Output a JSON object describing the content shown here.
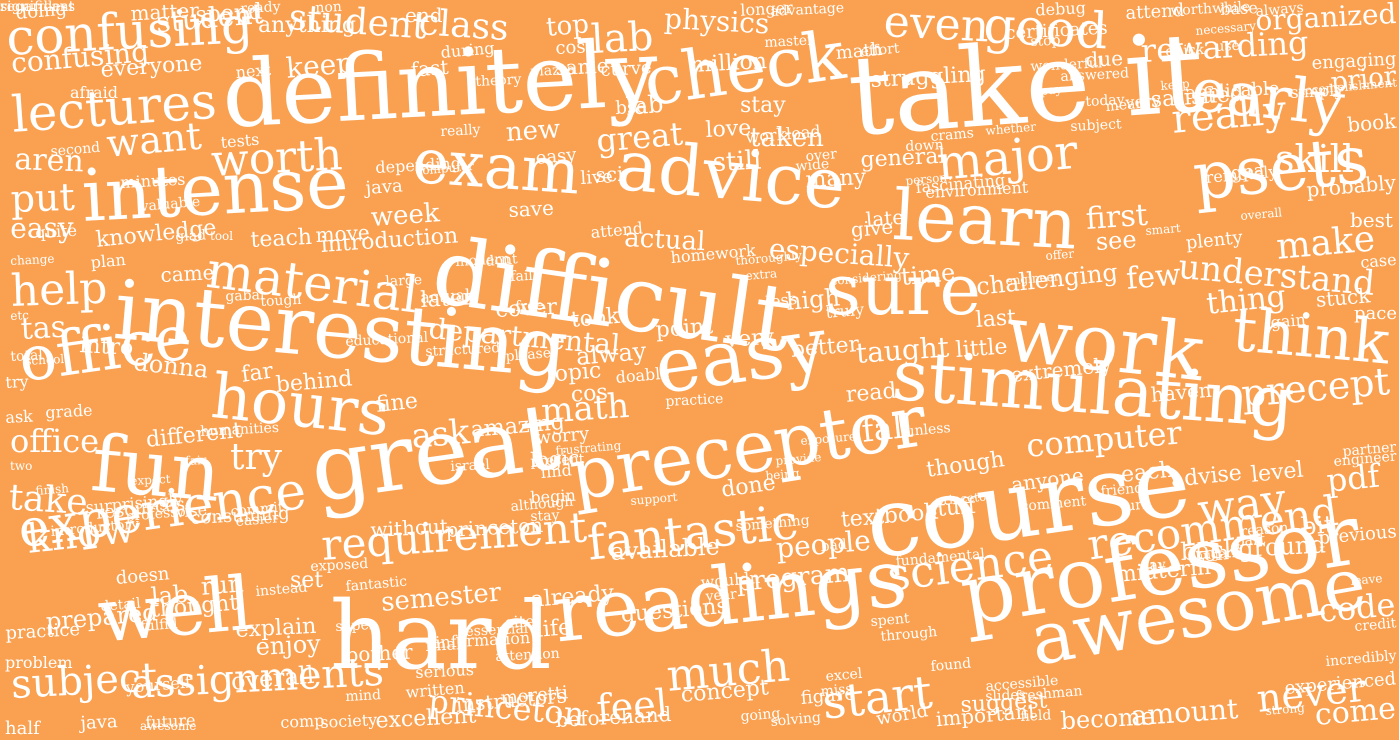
{
  "colors": {
    "background": "#F9A150",
    "text": "#FFFFFF"
  },
  "words": [
    "take it",
    "course",
    "definitely",
    "difficult",
    "great",
    "hard",
    "interesting",
    "readings",
    "professor",
    "easy",
    "awesome",
    "work",
    "preceptor",
    "stimulating",
    "advice",
    "intense",
    "learn",
    "psets",
    "check",
    "office",
    "fun",
    "well",
    "sure",
    "exam",
    "hours",
    "early",
    "think",
    "experience",
    "confusing",
    "lectures",
    "good",
    "major",
    "material",
    "even",
    "worth",
    "help",
    "fantastic",
    "science",
    "requirement",
    "assignments",
    "recommend",
    "much",
    "really",
    "skill",
    "understand",
    "make",
    "know",
    "subject",
    "computer",
    "lab",
    "class",
    "student",
    "want",
    "put",
    "aren",
    "tas",
    "easy",
    "office",
    "take",
    "try",
    "ask",
    "math",
    "departmental",
    "especially",
    "actual",
    "week",
    "challenging",
    "rewarding",
    "organized",
    "physics",
    "stay",
    "taken",
    "struggling",
    "prior",
    "book",
    "probably",
    "best",
    "case",
    "pace",
    "stuck",
    "precept",
    "way",
    "pdf",
    "bit",
    "code",
    "never",
    "come",
    "feel",
    "start",
    "amount",
    "become",
    "important",
    "world",
    "concept",
    "princeton",
    "semester",
    "prepared",
    "practice",
    "problem",
    "half",
    "yourself",
    "overall",
    "enjoy",
    "set",
    "people",
    "program",
    "available",
    "done",
    "fall",
    "taught",
    "little",
    "extremely",
    "haven",
    "though",
    "anyone",
    "each",
    "advise",
    "level",
    "stuff",
    "textbook",
    "without",
    "princeton",
    "resources",
    "consuming",
    "different",
    "donna",
    "far",
    "behind",
    "fine",
    "intro",
    "knowledge",
    "teach",
    "introduction",
    "move",
    "plenty",
    "few",
    "thing",
    "gain",
    "first",
    "see",
    "time",
    "last",
    "later",
    "cover",
    "took",
    "point",
    "very",
    "better",
    "read",
    "high",
    "less",
    "general",
    "many",
    "late",
    "give",
    "still",
    "love",
    "new",
    "great",
    "lab",
    "bse",
    "sci",
    "save",
    "top",
    "same",
    "curve",
    "cos",
    "end",
    "student",
    "confusing",
    "everyone",
    "afraid",
    "matter",
    "spend",
    "doing",
    "anything",
    "keep",
    "fast",
    "during",
    "next",
    "tests",
    "second",
    "minutes",
    "valuable",
    "glad",
    "tool",
    "change",
    "plan",
    "came",
    "gabai",
    "tough",
    "educational",
    "structured",
    "etc",
    "total",
    "try",
    "ask",
    "grade",
    "two",
    "school",
    "expect",
    "humanities",
    "fair",
    "israel",
    "worry",
    "amazing",
    "logic",
    "begin",
    "find",
    "stay",
    "cos",
    "topic",
    "alway",
    "practice",
    "doable",
    "please",
    "present",
    "dont",
    "fail",
    "free",
    "large",
    "actual",
    "attend",
    "depending",
    "java",
    "quite",
    "live",
    "easy",
    "math",
    "over",
    "wide",
    "pay",
    "person",
    "offer",
    "engineer",
    "overall",
    "smart",
    "effort",
    "certificates",
    "stop",
    "debug",
    "attend",
    "due",
    "quick",
    "simply",
    "satisfied",
    "applicable",
    "use",
    "keep",
    "wonderful",
    "answered",
    "very",
    "today",
    "subject",
    "crams",
    "computer",
    "really",
    "workload",
    "longer",
    "advantage",
    "whether",
    "mean",
    "worthwhile",
    "necessary",
    "base",
    "accomplishment",
    "engaging",
    "master",
    "always",
    "down",
    "fascinating",
    "environment",
    "gpa",
    "remotely",
    "thoroughly",
    "extra",
    "modern",
    "ready",
    "non",
    "piazza",
    "theory",
    "million",
    "instructors",
    "excellent",
    "society",
    "comp",
    "java",
    "future",
    "awesome",
    "moretti",
    "written",
    "mind",
    "beforehand",
    "attention",
    "serious",
    "information",
    "essential",
    "site",
    "super",
    "bother",
    "final",
    "exposed",
    "instead",
    "fantastic",
    "doesn",
    "detail",
    "lab",
    "run",
    "thought",
    "fulfill",
    "explain",
    "already",
    "questions",
    "life",
    "year",
    "midterm",
    "ton",
    "day",
    "part",
    "background",
    "reason",
    "huge",
    "wouldn",
    "something",
    "fundamental",
    "bad",
    "spent",
    "excel",
    "through",
    "miss",
    "figure",
    "solving",
    "going",
    "found",
    "suggest",
    "accessible",
    "slides",
    "freshman",
    "field",
    "strong",
    "incredibly",
    "leave",
    "credit",
    "experienced",
    "previous",
    "engineer",
    "partner",
    "friend",
    "turn",
    "comment",
    "princeton",
    "unless",
    "provide",
    "exposure",
    "being",
    "support",
    "frustrating",
    "although",
    "introductory",
    "surprisingly",
    "wise",
    "commit",
    "easier",
    "professor",
    "finish",
    "homework",
    "truly",
    "considering",
    "significant",
    "regardless"
  ]
}
